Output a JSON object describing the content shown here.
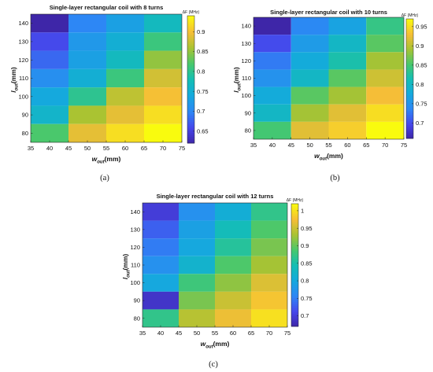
{
  "chart_data": [
    {
      "type": "heatmap",
      "title": "Single-layer rectangular coil with 8 turns",
      "xlabel": "w",
      "xlabel_sub": "out",
      "xlabel_unit": "(mm)",
      "ylabel": "l",
      "ylabel_sub": "out",
      "ylabel_unit": "(mm)",
      "x_ticks": [
        "35",
        "40",
        "45",
        "50",
        "55",
        "60",
        "65",
        "70",
        "75"
      ],
      "y_ticks": [
        "80",
        "90",
        "100",
        "110",
        "120",
        "130",
        "140"
      ],
      "x_centers": [
        40,
        50,
        60,
        70
      ],
      "y_centers": [
        140,
        130,
        120,
        110,
        100,
        90,
        80
      ],
      "xlim": [
        35,
        75
      ],
      "ylim": [
        75,
        145
      ],
      "values": [
        [
          0.62,
          0.7,
          0.73,
          0.77
        ],
        [
          0.66,
          0.72,
          0.75,
          0.81
        ],
        [
          0.68,
          0.73,
          0.77,
          0.85
        ],
        [
          0.71,
          0.75,
          0.81,
          0.88
        ],
        [
          0.74,
          0.8,
          0.87,
          0.9
        ],
        [
          0.76,
          0.86,
          0.89,
          0.92
        ],
        [
          0.82,
          0.89,
          0.92,
          0.94
        ]
      ],
      "colorbar_title": "ΔF (MHz)",
      "colorbar_ticks": [
        "0.65",
        "0.7",
        "0.75",
        "0.8",
        "0.85",
        "0.9"
      ],
      "colorbar_tick_values": [
        0.65,
        0.7,
        0.75,
        0.8,
        0.85,
        0.9
      ],
      "clim": [
        0.62,
        0.94
      ],
      "colormap": "parula",
      "panel_label": "(a)"
    },
    {
      "type": "heatmap",
      "title": "Single-layer rectangular coil with 10 turns",
      "xlabel": "w",
      "xlabel_sub": "out",
      "xlabel_unit": "(mm)",
      "ylabel": "l",
      "ylabel_sub": "out",
      "ylabel_unit": "(mm)",
      "x_ticks": [
        "35",
        "40",
        "45",
        "50",
        "55",
        "60",
        "65",
        "70",
        "75"
      ],
      "y_ticks": [
        "80",
        "90",
        "100",
        "110",
        "120",
        "130",
        "140"
      ],
      "x_centers": [
        40,
        50,
        60,
        70
      ],
      "y_centers": [
        140,
        130,
        120,
        110,
        100,
        90,
        80
      ],
      "xlim": [
        35,
        75
      ],
      "ylim": [
        75,
        145
      ],
      "values": [
        [
          0.66,
          0.74,
          0.77,
          0.84
        ],
        [
          0.7,
          0.76,
          0.8,
          0.86
        ],
        [
          0.73,
          0.78,
          0.82,
          0.89
        ],
        [
          0.75,
          0.8,
          0.86,
          0.91
        ],
        [
          0.78,
          0.86,
          0.89,
          0.93
        ],
        [
          0.8,
          0.89,
          0.92,
          0.95
        ],
        [
          0.85,
          0.92,
          0.94,
          0.97
        ]
      ],
      "colorbar_title": "ΔF (MHz)",
      "colorbar_ticks": [
        "0.7",
        "0.75",
        "0.8",
        "0.85",
        "0.9",
        "0.95"
      ],
      "colorbar_tick_values": [
        0.7,
        0.75,
        0.8,
        0.85,
        0.9,
        0.95
      ],
      "clim": [
        0.66,
        0.97
      ],
      "colormap": "parula",
      "panel_label": "(b)"
    },
    {
      "type": "heatmap",
      "title": "Single-layer rectangular coil with 12 turns",
      "xlabel": "w",
      "xlabel_sub": "out",
      "xlabel_unit": "(mm)",
      "ylabel": "l",
      "ylabel_sub": "out",
      "ylabel_unit": "(mm)",
      "x_ticks": [
        "35",
        "40",
        "45",
        "50",
        "55",
        "60",
        "65",
        "70",
        "75"
      ],
      "y_ticks": [
        "80",
        "90",
        "100",
        "110",
        "120",
        "130",
        "140"
      ],
      "x_centers": [
        40,
        50,
        60,
        70
      ],
      "y_centers": [
        140,
        130,
        120,
        110,
        100,
        90,
        80
      ],
      "xlim": [
        35,
        75
      ],
      "ylim": [
        75,
        145
      ],
      "values": [
        [
          0.7,
          0.77,
          0.81,
          0.87
        ],
        [
          0.73,
          0.79,
          0.84,
          0.89
        ],
        [
          0.75,
          0.8,
          0.86,
          0.91
        ],
        [
          0.77,
          0.82,
          0.89,
          0.93
        ],
        [
          0.8,
          0.88,
          0.92,
          0.96
        ],
        [
          0.69,
          0.91,
          0.95,
          0.98
        ],
        [
          0.87,
          0.94,
          0.97,
          1.0
        ]
      ],
      "colorbar_title": "ΔF (MHz)",
      "colorbar_ticks": [
        "0.7",
        "0.75",
        "0.8",
        "0.85",
        "0.9",
        "0.95",
        "1"
      ],
      "colorbar_tick_values": [
        0.7,
        0.75,
        0.8,
        0.85,
        0.9,
        0.95,
        1.0
      ],
      "clim": [
        0.67,
        1.02
      ],
      "colormap": "parula",
      "panel_label": "(c)"
    }
  ]
}
